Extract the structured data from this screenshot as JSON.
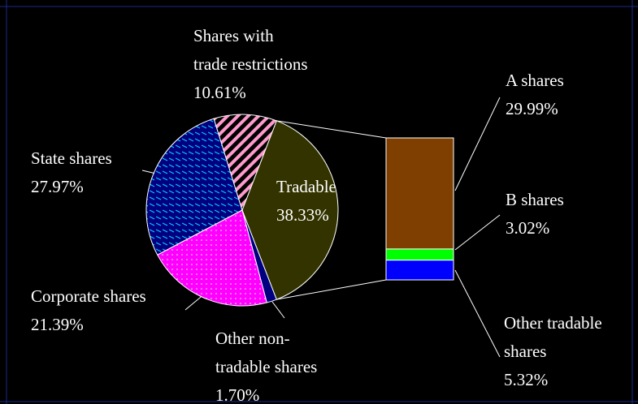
{
  "chart_data": {
    "type": "pie-of-bar",
    "pie": {
      "categories": [
        "Tradable",
        "Other non-\ntradable shares",
        "Corporate shares",
        "State shares",
        "Shares with\ntrade restrictions"
      ],
      "values": [
        38.33,
        1.7,
        21.39,
        27.97,
        10.61
      ],
      "value_labels": [
        "38.33%",
        "1.70%",
        "21.39%",
        "27.97%",
        "10.61%"
      ],
      "colors": [
        "#333300",
        "#000080",
        "#ff00ff",
        "#000080",
        "#000000"
      ]
    },
    "bar": {
      "categories": [
        "A shares",
        "B shares",
        "Other tradable\nshares"
      ],
      "values": [
        29.99,
        3.02,
        5.32
      ],
      "value_labels": [
        "29.99%",
        "3.02%",
        "5.32%"
      ],
      "colors": [
        "#7f3f00",
        "#00ff00",
        "#0000ff"
      ]
    }
  }
}
